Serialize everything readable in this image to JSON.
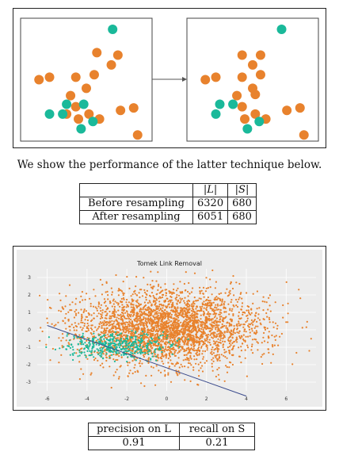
{
  "figure1": {
    "teal_color": "#1ab99a",
    "orange_color": "#e8822d",
    "before_points": {
      "orange": [
        [
          0.58,
          0.28
        ],
        [
          0.74,
          0.3
        ],
        [
          0.69,
          0.38
        ],
        [
          0.14,
          0.5
        ],
        [
          0.42,
          0.48
        ],
        [
          0.5,
          0.57
        ],
        [
          0.56,
          0.46
        ],
        [
          0.38,
          0.63
        ],
        [
          0.42,
          0.72
        ],
        [
          0.35,
          0.78
        ],
        [
          0.52,
          0.78
        ],
        [
          0.6,
          0.82
        ],
        [
          0.44,
          0.82
        ],
        [
          0.76,
          0.75
        ],
        [
          0.86,
          0.73
        ],
        [
          0.89,
          0.95
        ],
        [
          0.22,
          0.48
        ]
      ],
      "teal": [
        [
          0.7,
          0.09
        ],
        [
          0.32,
          0.78
        ],
        [
          0.22,
          0.78
        ],
        [
          0.35,
          0.7
        ],
        [
          0.55,
          0.84
        ],
        [
          0.46,
          0.9
        ],
        [
          0.48,
          0.7
        ]
      ]
    },
    "after_points": {
      "orange": [
        [
          0.42,
          0.3
        ],
        [
          0.56,
          0.3
        ],
        [
          0.5,
          0.38
        ],
        [
          0.14,
          0.5
        ],
        [
          0.42,
          0.48
        ],
        [
          0.5,
          0.57
        ],
        [
          0.56,
          0.46
        ],
        [
          0.38,
          0.63
        ],
        [
          0.42,
          0.72
        ],
        [
          0.52,
          0.78
        ],
        [
          0.6,
          0.82
        ],
        [
          0.44,
          0.82
        ],
        [
          0.76,
          0.75
        ],
        [
          0.86,
          0.73
        ],
        [
          0.89,
          0.95
        ],
        [
          0.22,
          0.48
        ],
        [
          0.52,
          0.62
        ]
      ],
      "teal": [
        [
          0.72,
          0.09
        ],
        [
          0.25,
          0.7
        ],
        [
          0.22,
          0.78
        ],
        [
          0.35,
          0.7
        ],
        [
          0.55,
          0.84
        ],
        [
          0.46,
          0.9
        ]
      ]
    }
  },
  "caption": "We show the performance of the latter technique below.",
  "counts_table": {
    "headers": [
      "",
      "|L|",
      "|S|"
    ],
    "rows": [
      {
        "label": "Before resampling",
        "L": "6320",
        "S": "680"
      },
      {
        "label": "After resampling",
        "L": "6051",
        "S": "680"
      }
    ]
  },
  "scatter_plot": {
    "chart_data": {
      "type": "scatter",
      "title": "Tomek Link Removal",
      "xlim": [
        -6.5,
        7.5
      ],
      "ylim": [
        -3.5,
        3.5
      ],
      "x_ticks": [
        "-6",
        "-4",
        "-2",
        "0",
        "2",
        "4",
        "6"
      ],
      "y_ticks": [
        "3",
        "2",
        "1",
        "0",
        "-1",
        "-2",
        "-3"
      ],
      "grid": true,
      "series": [
        {
          "color": "#e8822d",
          "center": [
            0,
            0.1
          ],
          "spread": [
            2.3,
            1.1
          ],
          "count": 6051
        },
        {
          "color": "#1ab99a",
          "center": [
            -2.5,
            -0.9
          ],
          "spread": [
            1.3,
            0.35
          ],
          "count": 680
        }
      ],
      "decision_line": {
        "x": [
          -6,
          4
        ],
        "y": [
          0.25,
          -3.8
        ],
        "color": "#3a4a8c"
      }
    }
  },
  "metrics_table": {
    "headers": [
      "precision on L",
      "recall on S"
    ],
    "values": [
      "0.91",
      "0.21"
    ]
  }
}
